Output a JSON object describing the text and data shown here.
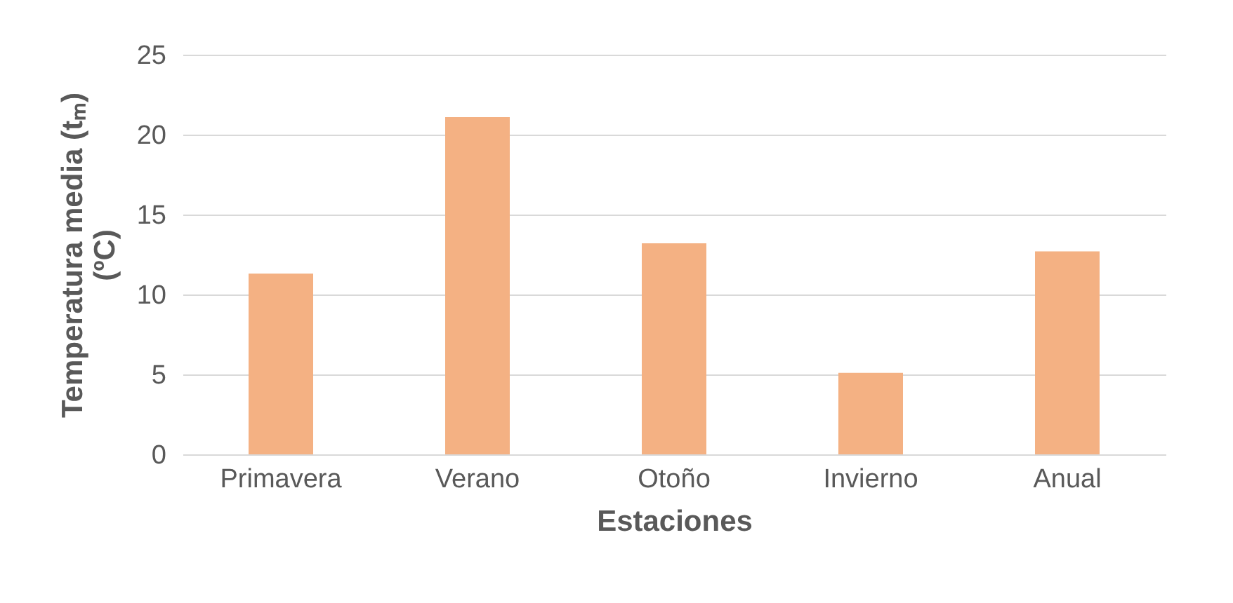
{
  "chart_data": {
    "type": "bar",
    "xlabel": "Estaciones",
    "ylabel": "Temperatura media (tₘ)\n(ºC)",
    "categories": [
      "Primavera",
      "Verano",
      "Otoño",
      "Invierno",
      "Anual"
    ],
    "values": [
      11.3,
      21.1,
      13.2,
      5.1,
      12.7
    ],
    "color": "#f4b183",
    "ylim": [
      0,
      25
    ],
    "yticks": [
      0,
      5,
      10,
      15,
      20,
      25
    ],
    "grid": "y"
  }
}
